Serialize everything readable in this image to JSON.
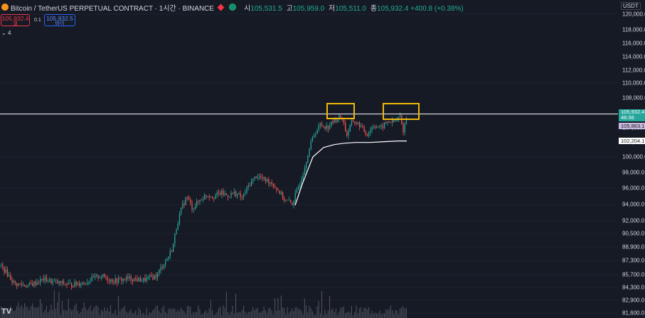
{
  "header": {
    "symbol_title": "Bitcoin / TetherUS PERPETUAL CONTRACT · 1시간 · BINANCE",
    "ohlc": [
      {
        "key": "시",
        "value": "105,531.5"
      },
      {
        "key": "고",
        "value": "105,959.0"
      },
      {
        "key": "저",
        "value": "105,511.0"
      },
      {
        "key": "종",
        "value": "105,932.4 +400.8 (+0.38%)"
      }
    ]
  },
  "trade": {
    "sell_price": "105,932.4",
    "sell_label": "셀",
    "spread": "0.1",
    "buy_price": "105,932.5",
    "buy_label": "바이"
  },
  "indicator_collapse": "4",
  "axis": {
    "currency": "USDT",
    "ticks": [
      "120,000.0",
      "118,000.0",
      "116,000.0",
      "114,000.0",
      "112,000.0",
      "110,000.0",
      "108,000.0",
      "106,000.0",
      "104,000.0",
      "102,000.0",
      "100,000.0",
      "98,000.0",
      "96,000.0",
      "94,000.0",
      "92,000.0",
      "90,500.0",
      "88,900.0",
      "87,300.0",
      "85,700.0",
      "84,300.0",
      "82,900.0",
      "81,600.0"
    ],
    "last_price": "105,932.4",
    "countdown": "46:36",
    "ma_price": "105,863.1",
    "vwap_price": "102,204.1"
  },
  "colors": {
    "up": "#26a69a",
    "down": "#ef5350",
    "background": "#161a25",
    "highlight": "#f0b90b",
    "vwap": "#ffffff"
  },
  "chart_data": {
    "type": "candlestick",
    "title": "Bitcoin / TetherUS PERPETUAL CONTRACT · 1시간 · BINANCE",
    "ylim": [
      80700,
      121000
    ],
    "y_scale": "log",
    "close_trend": [
      [
        0,
        86800
      ],
      [
        20,
        84700
      ],
      [
        40,
        84500
      ],
      [
        60,
        85200
      ],
      [
        80,
        84800
      ],
      [
        100,
        84600
      ],
      [
        120,
        84900
      ],
      [
        140,
        85600
      ],
      [
        160,
        85000
      ],
      [
        180,
        85300
      ],
      [
        200,
        85100
      ],
      [
        220,
        85600
      ],
      [
        228,
        86800
      ],
      [
        235,
        87600
      ],
      [
        242,
        88800
      ],
      [
        248,
        91500
      ],
      [
        255,
        93600
      ],
      [
        262,
        95000
      ],
      [
        270,
        93500
      ],
      [
        280,
        94500
      ],
      [
        290,
        95200
      ],
      [
        300,
        95000
      ],
      [
        310,
        95400
      ],
      [
        320,
        95100
      ],
      [
        330,
        95400
      ],
      [
        340,
        94800
      ],
      [
        350,
        96500
      ],
      [
        360,
        97600
      ],
      [
        370,
        97100
      ],
      [
        380,
        96800
      ],
      [
        390,
        95800
      ],
      [
        400,
        94500
      ],
      [
        410,
        94100
      ],
      [
        418,
        95800
      ],
      [
        425,
        97800
      ],
      [
        432,
        100300
      ],
      [
        440,
        103000
      ],
      [
        450,
        104500
      ],
      [
        460,
        104100
      ],
      [
        470,
        105100
      ],
      [
        480,
        105600
      ],
      [
        487,
        103000
      ],
      [
        495,
        105000
      ],
      [
        505,
        104400
      ],
      [
        515,
        103100
      ],
      [
        525,
        104400
      ],
      [
        535,
        104000
      ],
      [
        545,
        104900
      ],
      [
        555,
        104800
      ],
      [
        562,
        105600
      ],
      [
        566,
        103500
      ],
      [
        572,
        105900
      ]
    ],
    "vwap_trend": [
      [
        415,
        93900
      ],
      [
        425,
        96500
      ],
      [
        440,
        100000
      ],
      [
        455,
        101300
      ],
      [
        470,
        101700
      ],
      [
        485,
        101900
      ],
      [
        500,
        102000
      ],
      [
        520,
        102000
      ],
      [
        540,
        102100
      ],
      [
        560,
        102200
      ],
      [
        572,
        102204
      ]
    ],
    "last_price": 105932.4,
    "highlight_regions": [
      "double-top left",
      "double-top right"
    ]
  }
}
